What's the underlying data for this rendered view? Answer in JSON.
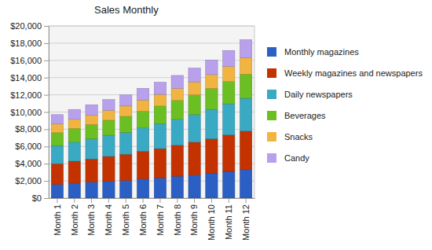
{
  "chart_data": {
    "type": "bar",
    "stacked": true,
    "title": "Sales Monthly",
    "categories": [
      "Month 1",
      "Month 2",
      "Month 3",
      "Month 4",
      "Month 5",
      "Month 6",
      "Month 7",
      "Month 8",
      "Month 9",
      "Month 10",
      "Month 11",
      "Month 12"
    ],
    "series": [
      {
        "name": "Monthly magazines",
        "color": "#2b5fc4",
        "values": [
          1600,
          1750,
          1850,
          1950,
          2050,
          2250,
          2350,
          2550,
          2700,
          2900,
          3100,
          3300
        ]
      },
      {
        "name": "Weekly magazines and newspapers",
        "color": "#c43200",
        "values": [
          2400,
          2550,
          2700,
          2900,
          3050,
          3200,
          3400,
          3600,
          3800,
          4000,
          4250,
          4500
        ]
      },
      {
        "name": "Daily newspapers",
        "color": "#3aa9c4",
        "values": [
          2100,
          2200,
          2350,
          2450,
          2550,
          2700,
          2900,
          3000,
          3200,
          3400,
          3600,
          3800
        ]
      },
      {
        "name": "Beverages",
        "color": "#6cbf22",
        "values": [
          1500,
          1600,
          1650,
          1750,
          1850,
          1950,
          2050,
          2200,
          2300,
          2450,
          2600,
          2800
        ]
      },
      {
        "name": "Snacks",
        "color": "#f2b441",
        "values": [
          1000,
          1050,
          1100,
          1150,
          1200,
          1300,
          1350,
          1400,
          1500,
          1600,
          1750,
          1900
        ]
      },
      {
        "name": "Candy",
        "color": "#b9a0ec",
        "values": [
          1100,
          1150,
          1200,
          1250,
          1300,
          1350,
          1400,
          1500,
          1600,
          1700,
          1850,
          2100
        ]
      }
    ],
    "ylim": [
      0,
      20000
    ],
    "yticks": [
      {
        "value": 0,
        "label": "$0"
      },
      {
        "value": 2000,
        "label": "$2,000"
      },
      {
        "value": 4000,
        "label": "$4,000"
      },
      {
        "value": 6000,
        "label": "$6,000"
      },
      {
        "value": 8000,
        "label": "$8,000"
      },
      {
        "value": 10000,
        "label": "$10,000"
      },
      {
        "value": 12000,
        "label": "$12,000"
      },
      {
        "value": 14000,
        "label": "$14,000"
      },
      {
        "value": 16000,
        "label": "$16,000"
      },
      {
        "value": 18000,
        "label": "$18,000"
      },
      {
        "value": 20000,
        "label": "$20,000"
      }
    ],
    "grid": true,
    "legend": "right"
  }
}
